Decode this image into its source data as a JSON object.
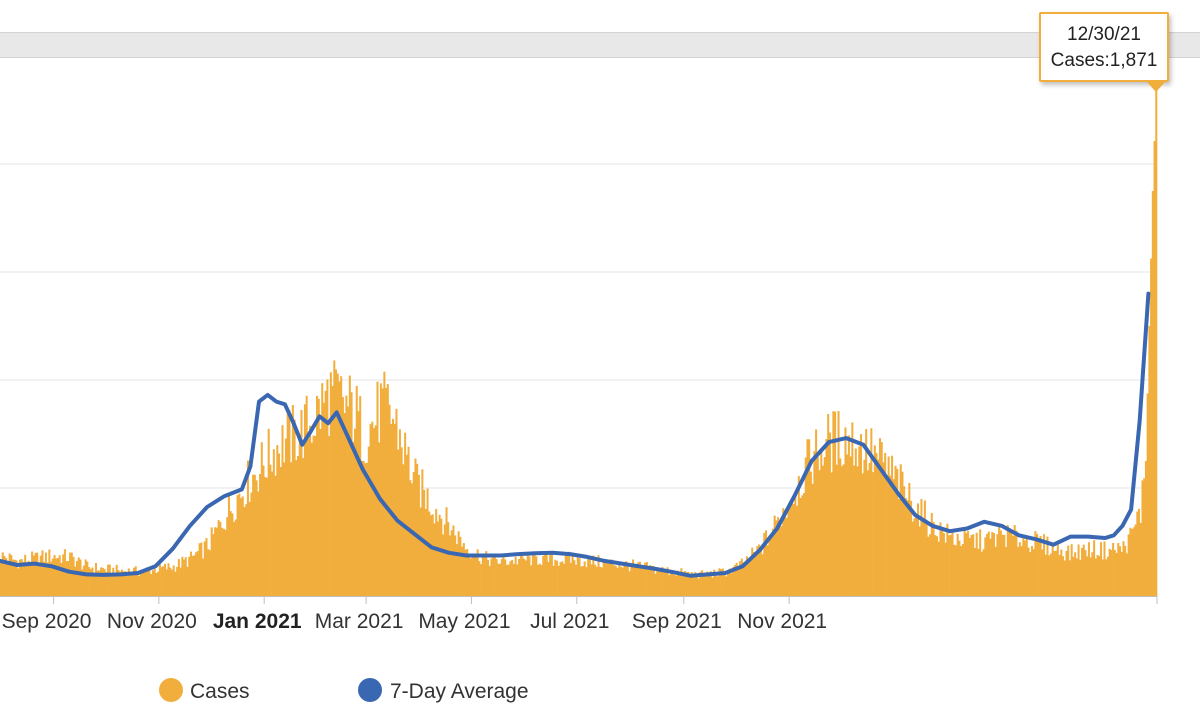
{
  "chart_data": {
    "type": "bar",
    "series": [
      {
        "name": "Cases",
        "kind": "bar",
        "color": "#f2ae3c",
        "points": [
          [
            0,
            150
          ],
          [
            10,
            130
          ],
          [
            20,
            140
          ],
          [
            30,
            150
          ],
          [
            40,
            145
          ],
          [
            50,
            110
          ],
          [
            60,
            100
          ],
          [
            70,
            95
          ],
          [
            80,
            92
          ],
          [
            90,
            100
          ],
          [
            100,
            110
          ],
          [
            110,
            140
          ],
          [
            120,
            190
          ],
          [
            130,
            300
          ],
          [
            140,
            400
          ],
          [
            150,
            480
          ],
          [
            160,
            560
          ],
          [
            170,
            600
          ],
          [
            175,
            620
          ],
          [
            180,
            650
          ],
          [
            185,
            700
          ],
          [
            190,
            750
          ],
          [
            195,
            740
          ],
          [
            200,
            710
          ],
          [
            205,
            690
          ],
          [
            210,
            600
          ],
          [
            215,
            640
          ],
          [
            220,
            700
          ],
          [
            225,
            690
          ],
          [
            230,
            620
          ],
          [
            235,
            520
          ],
          [
            240,
            430
          ],
          [
            250,
            340
          ],
          [
            260,
            260
          ],
          [
            270,
            180
          ],
          [
            280,
            140
          ],
          [
            290,
            130
          ],
          [
            300,
            135
          ],
          [
            310,
            140
          ],
          [
            320,
            135
          ],
          [
            330,
            138
          ],
          [
            340,
            130
          ],
          [
            350,
            125
          ],
          [
            360,
            118
          ],
          [
            370,
            110
          ],
          [
            380,
            100
          ],
          [
            390,
            90
          ],
          [
            400,
            82
          ],
          [
            405,
            80
          ],
          [
            410,
            82
          ],
          [
            420,
            90
          ],
          [
            430,
            120
          ],
          [
            440,
            180
          ],
          [
            450,
            280
          ],
          [
            460,
            400
          ],
          [
            470,
            520
          ],
          [
            480,
            580
          ],
          [
            490,
            590
          ],
          [
            500,
            550
          ],
          [
            510,
            500
          ],
          [
            520,
            420
          ],
          [
            530,
            330
          ],
          [
            540,
            260
          ],
          [
            550,
            220
          ],
          [
            560,
            210
          ],
          [
            570,
            205
          ],
          [
            580,
            230
          ],
          [
            590,
            215
          ],
          [
            600,
            200
          ],
          [
            610,
            180
          ],
          [
            620,
            160
          ],
          [
            630,
            175
          ],
          [
            640,
            170
          ],
          [
            650,
            180
          ],
          [
            655,
            230
          ],
          [
            660,
            320
          ],
          [
            663,
            500
          ],
          [
            665,
            1000
          ],
          [
            667,
            1500
          ],
          [
            669,
            1871
          ]
        ]
      },
      {
        "name": "7-Day Average",
        "kind": "line",
        "color": "#3a67b1",
        "points": [
          [
            0,
            130
          ],
          [
            10,
            115
          ],
          [
            20,
            120
          ],
          [
            30,
            110
          ],
          [
            40,
            90
          ],
          [
            50,
            80
          ],
          [
            60,
            78
          ],
          [
            70,
            80
          ],
          [
            80,
            85
          ],
          [
            90,
            110
          ],
          [
            100,
            175
          ],
          [
            110,
            260
          ],
          [
            120,
            330
          ],
          [
            130,
            370
          ],
          [
            140,
            395
          ],
          [
            145,
            480
          ],
          [
            150,
            720
          ],
          [
            155,
            745
          ],
          [
            160,
            720
          ],
          [
            165,
            710
          ],
          [
            170,
            640
          ],
          [
            175,
            560
          ],
          [
            180,
            610
          ],
          [
            185,
            665
          ],
          [
            190,
            640
          ],
          [
            195,
            680
          ],
          [
            200,
            610
          ],
          [
            210,
            470
          ],
          [
            220,
            360
          ],
          [
            230,
            280
          ],
          [
            240,
            230
          ],
          [
            250,
            180
          ],
          [
            260,
            160
          ],
          [
            270,
            150
          ],
          [
            280,
            150
          ],
          [
            290,
            150
          ],
          [
            300,
            155
          ],
          [
            310,
            158
          ],
          [
            320,
            160
          ],
          [
            330,
            155
          ],
          [
            340,
            145
          ],
          [
            350,
            130
          ],
          [
            360,
            120
          ],
          [
            370,
            110
          ],
          [
            380,
            100
          ],
          [
            390,
            88
          ],
          [
            400,
            75
          ],
          [
            410,
            80
          ],
          [
            420,
            85
          ],
          [
            430,
            110
          ],
          [
            440,
            170
          ],
          [
            450,
            250
          ],
          [
            460,
            370
          ],
          [
            470,
            500
          ],
          [
            480,
            570
          ],
          [
            490,
            585
          ],
          [
            500,
            560
          ],
          [
            510,
            470
          ],
          [
            520,
            380
          ],
          [
            530,
            300
          ],
          [
            540,
            260
          ],
          [
            550,
            240
          ],
          [
            560,
            250
          ],
          [
            570,
            275
          ],
          [
            580,
            260
          ],
          [
            590,
            225
          ],
          [
            600,
            210
          ],
          [
            610,
            190
          ],
          [
            620,
            220
          ],
          [
            630,
            220
          ],
          [
            640,
            215
          ],
          [
            645,
            225
          ],
          [
            650,
            260
          ],
          [
            655,
            320
          ],
          [
            660,
            650
          ],
          [
            665,
            1120
          ]
        ]
      }
    ],
    "x_ticks": [
      "Sep 2020",
      "Nov 2020",
      "Jan 2021",
      "Mar 2021",
      "May 2021",
      "Jul 2021",
      "Sep 2021",
      "Nov 2021"
    ],
    "x_tick_index": [
      31,
      92,
      153,
      212,
      273,
      334,
      396,
      457
    ],
    "x_bold_tick": "Jan 2021",
    "ylim": [
      0,
      2000
    ],
    "y_gridlines": [
      0,
      400,
      800,
      1200,
      1600
    ],
    "x_range": [
      0,
      670
    ],
    "tooltip": {
      "date": "12/30/21",
      "label": "Cases:",
      "value": "1,871"
    },
    "legend": [
      {
        "name": "Cases",
        "color": "#f2ae3c"
      },
      {
        "name": "7-Day Average",
        "color": "#3a67b1"
      }
    ]
  }
}
